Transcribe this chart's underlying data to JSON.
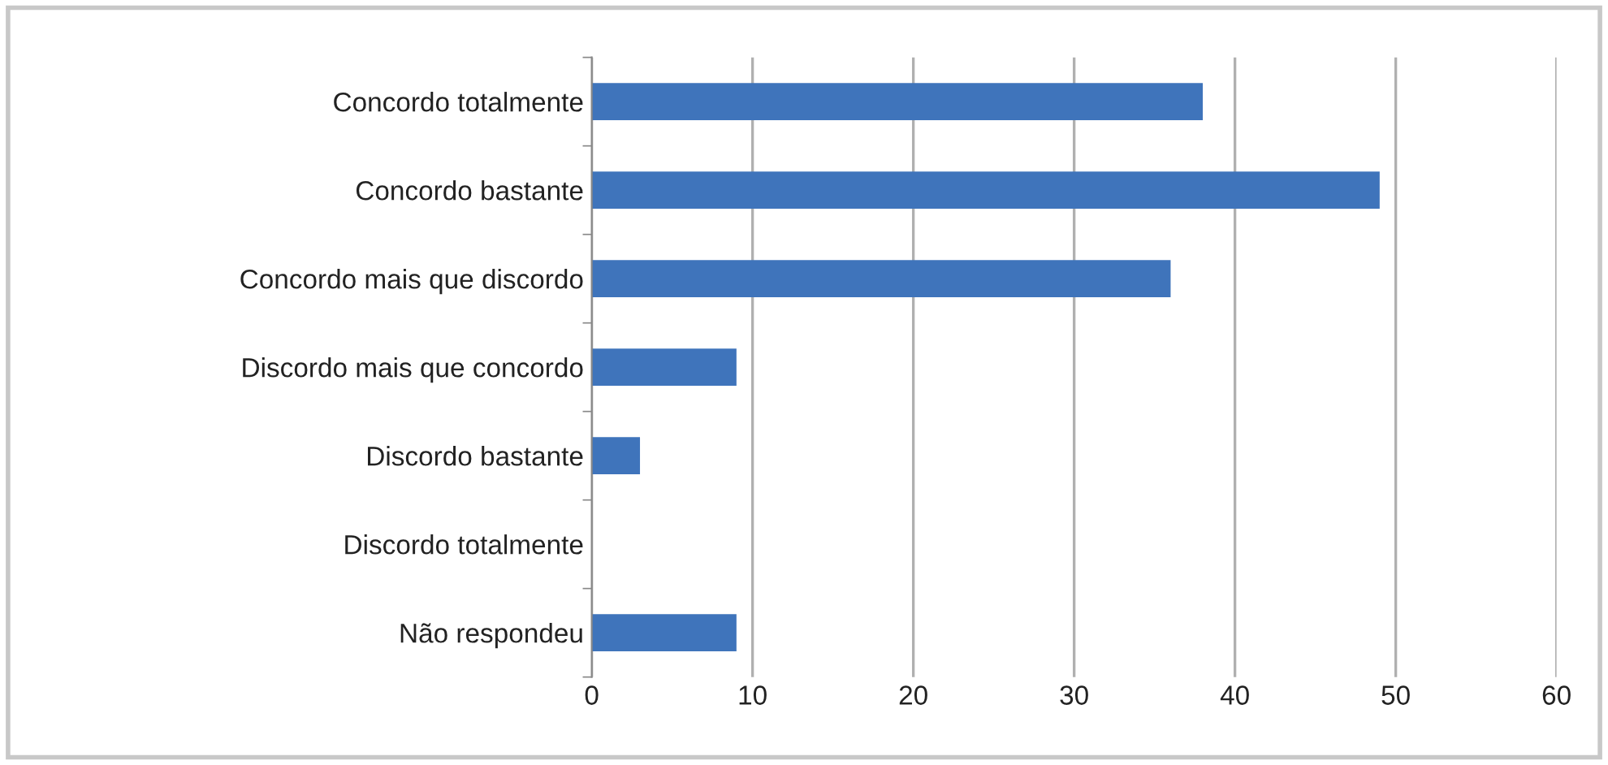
{
  "chart_data": {
    "type": "bar",
    "orientation": "horizontal",
    "categories": [
      "Concordo totalmente",
      "Concordo bastante",
      "Concordo mais que discordo",
      "Discordo mais que concordo",
      "Discordo bastante",
      "Discordo totalmente",
      "Não respondeu"
    ],
    "values": [
      38,
      49,
      36,
      9,
      3,
      0,
      9
    ],
    "color": "#3f74bb",
    "xlim": [
      0,
      60
    ],
    "xticks": [
      0,
      10,
      20,
      30,
      40,
      50,
      60
    ],
    "grid": "x",
    "legend": false
  }
}
